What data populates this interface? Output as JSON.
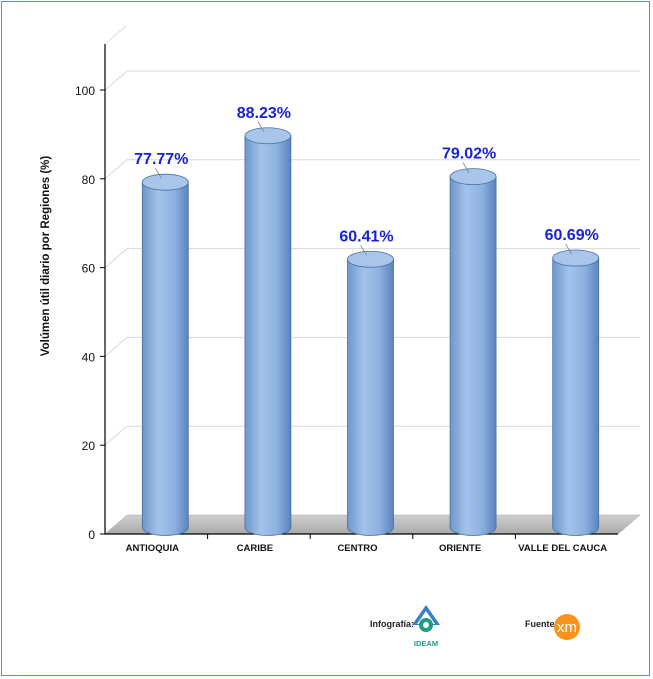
{
  "chart_data": {
    "type": "bar",
    "title": "",
    "ylabel": "Volúmen útil diario por Regiones (%)",
    "xlabel": "",
    "categories": [
      "ANTIOQUIA",
      "CARIBE",
      "CENTRO",
      "ORIENTE",
      "VALLE DEL CAUCA"
    ],
    "values": [
      77.77,
      88.23,
      60.41,
      79.02,
      60.69
    ],
    "data_labels": [
      "77.77%",
      "88.23%",
      "60.41%",
      "79.02%",
      "60.69%"
    ],
    "yticks": [
      "0",
      "20",
      "40",
      "60",
      "80",
      "100"
    ],
    "ylim": [
      0,
      100
    ],
    "grid": true,
    "bar_style": "3d-cylinder",
    "colors": {
      "bar": "#8db4e2",
      "bar_dark": "#5a84bd",
      "bar_top": "#a9c6ea",
      "label": "#1a22d6",
      "floor": "#bfbfbf",
      "frame": "#5b8fd0"
    }
  },
  "footer": {
    "infografia_label": "Infografía:",
    "ideam_logo_text": "IDEAM",
    "fuente_label": "Fuente:",
    "xm_logo_text": "xm"
  }
}
